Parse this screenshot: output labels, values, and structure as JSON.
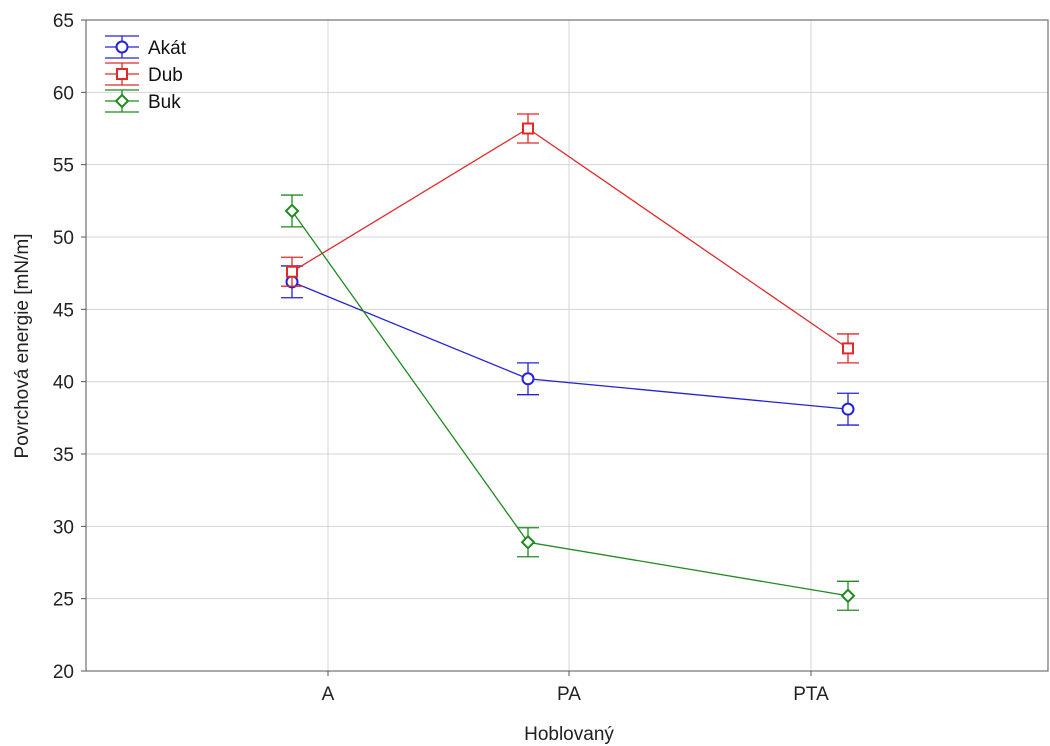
{
  "chart_data": {
    "type": "line",
    "title": "",
    "xlabel": "Hoblovaný",
    "ylabel": "Povrchová energie [mN/m]",
    "categories": [
      "A",
      "PA",
      "PTA"
    ],
    "ylim": [
      20,
      65
    ],
    "yticks": [
      "20",
      "25",
      "30",
      "35",
      "40",
      "45",
      "50",
      "55",
      "60",
      "65"
    ],
    "grid": true,
    "legend_position": "top-left",
    "series": [
      {
        "name": "Akát",
        "color": "#2323d6",
        "marker": "circle",
        "values": [
          46.9,
          40.2,
          38.1
        ],
        "err": [
          1.1,
          1.1,
          1.1
        ]
      },
      {
        "name": "Dub",
        "color": "#e02a2a",
        "marker": "square",
        "values": [
          47.6,
          57.5,
          42.3
        ],
        "err": [
          1.0,
          1.0,
          1.0
        ]
      },
      {
        "name": "Buk",
        "color": "#1f8a1f",
        "marker": "diamond",
        "values": [
          51.8,
          28.9,
          25.2
        ],
        "err": [
          1.1,
          1.0,
          1.0
        ]
      }
    ]
  }
}
